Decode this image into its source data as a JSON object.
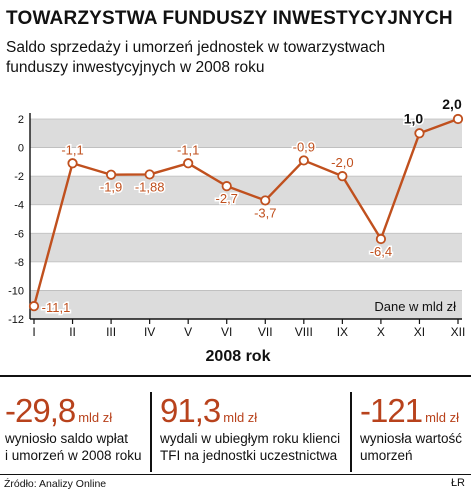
{
  "header": {
    "title": "TOWARZYSTWA FUNDUSZY INWESTYCYJNYCH",
    "subtitle": "Saldo sprzedaży i umorzeń jednostek w towarzystwach funduszy inwestycyjnych w 2008 roku"
  },
  "chart_data": {
    "type": "line",
    "categories": [
      "I",
      "II",
      "III",
      "IV",
      "V",
      "VI",
      "VII",
      "VIII",
      "IX",
      "X",
      "XI",
      "XII"
    ],
    "values": [
      -11.1,
      -1.1,
      -1.9,
      -1.88,
      -1.1,
      -2.7,
      -3.7,
      -0.9,
      -2.0,
      -6.4,
      1.0,
      2.0
    ],
    "data_labels": [
      "-11,1",
      "-1,1",
      "-1,9",
      "-1,88",
      "-1,1",
      "-2,7",
      "-3,7",
      "-0,9",
      "-2,0",
      "-6,4",
      "1,0",
      "2,0"
    ],
    "yticks": [
      2,
      0,
      -2,
      -4,
      -6,
      -8,
      -10,
      -12
    ],
    "ylim": [
      -12,
      2
    ],
    "xlabel": "2008 rok",
    "unit_note": "Dane w mld zł",
    "grid": "alternating horizontal bands",
    "colors": {
      "line": "#c0501e",
      "marker_fill": "#ffffff",
      "band": "#dcdcdc",
      "positive_label": "#111111"
    }
  },
  "stats": [
    {
      "value": "-29,8",
      "unit": "mld zł",
      "description": [
        "wyniosło saldo wpłat",
        "i umorzeń w 2008 roku"
      ]
    },
    {
      "value": "91,3",
      "unit": "mld zł",
      "description": [
        "wydali w ubiegłym roku klienci",
        "TFI na jednostki uczestnictwa"
      ]
    },
    {
      "value": "-121",
      "unit": "mld zł",
      "description": [
        "wyniosła wartość",
        "umorzeń"
      ]
    }
  ],
  "footer": {
    "source": "Źródło: Analizy Online",
    "credit": "ŁR"
  },
  "accent": "#b8421c"
}
